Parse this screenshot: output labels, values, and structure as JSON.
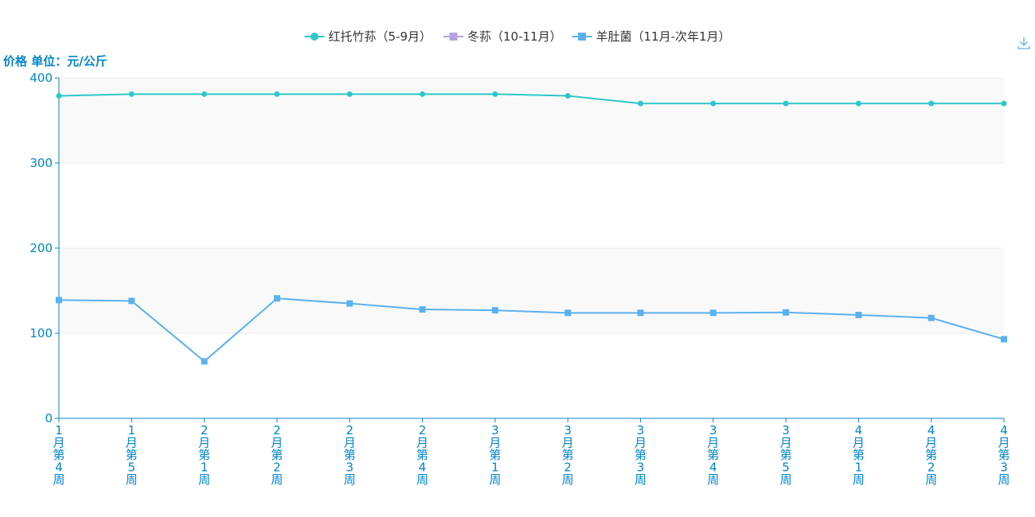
{
  "chart_data": {
    "type": "line",
    "ylabel": "价格 单位：元/公斤",
    "ylim": [
      0,
      400
    ],
    "yticks": [
      0,
      100,
      200,
      300,
      400
    ],
    "categories": [
      "1月第4周",
      "1月第5周",
      "2月第1周",
      "2月第2周",
      "2月第3周",
      "2月第4周",
      "3月第1周",
      "3月第2周",
      "3月第3周",
      "3月第4周",
      "3月第5周",
      "4月第1周",
      "4月第2周",
      "4月第3周"
    ],
    "series": [
      {
        "name": "红托竹荪（5-9月）",
        "color": "#2ec7c9",
        "marker": "circle",
        "values": [
          379,
          381,
          381,
          381,
          381,
          381,
          381,
          379,
          370,
          370,
          370,
          370,
          370,
          370
        ]
      },
      {
        "name": "冬荪（10-11月）",
        "color": "#b6a2de",
        "marker": "square",
        "values": [
          null,
          null,
          null,
          null,
          null,
          null,
          null,
          null,
          null,
          null,
          null,
          null,
          null,
          null
        ]
      },
      {
        "name": "羊肚菌（11月-次年1月）",
        "color": "#5ab1ef",
        "marker": "square",
        "values": [
          139,
          138,
          67,
          141,
          135,
          128,
          127,
          124,
          124,
          124,
          124.5,
          121.5,
          118,
          93
        ]
      }
    ],
    "grid": true,
    "legend_position": "top-center",
    "axis_color": "#0086c9"
  },
  "toolbar": {
    "icon": "download-icon"
  }
}
